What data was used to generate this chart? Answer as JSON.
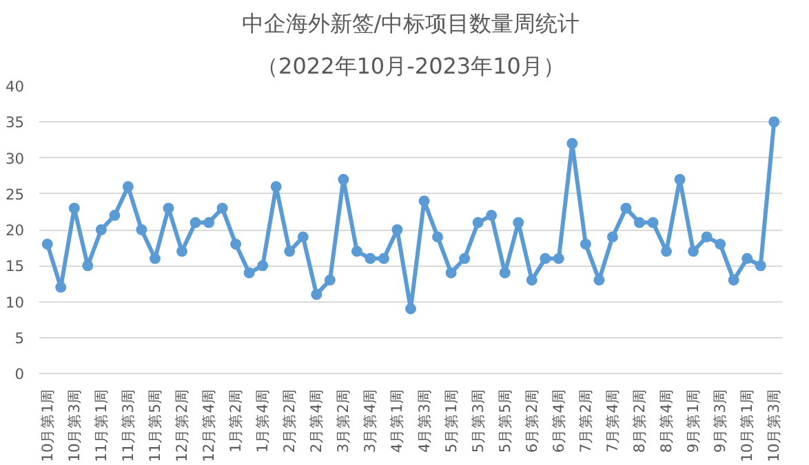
{
  "chart_data": {
    "type": "line",
    "title": "中企海外新签/中标项目数量周统计",
    "subtitle": "（2022年10月-2023年10月）",
    "categories": [
      "10月第1周",
      null,
      "10月第3周",
      null,
      "11月第1周",
      null,
      "11月第3周",
      null,
      "11月第5周",
      null,
      "12月第2周",
      null,
      "12月第4周",
      null,
      "1月第2周",
      null,
      "1月第4周",
      null,
      "2月第2周",
      null,
      "2月第4周",
      null,
      "3月第2周",
      null,
      "3月第4周",
      null,
      "4月第1周",
      null,
      "4月第3周",
      null,
      "5月第1周",
      null,
      "5月第3周",
      null,
      "5月第5周",
      null,
      "6月第2周",
      null,
      "6月第4周",
      null,
      "7月第2周",
      null,
      "7月第4周",
      null,
      "8月第2周",
      null,
      "8月第4周",
      null,
      "9月第1周",
      null,
      "9月第3周",
      null,
      "10月第1周",
      null,
      "10月第3周"
    ],
    "series": [
      {
        "color": "#5b9bd5",
        "values": [
          18,
          12,
          23,
          15,
          20,
          22,
          26,
          20,
          16,
          23,
          17,
          21,
          21,
          23,
          18,
          14,
          15,
          26,
          17,
          19,
          11,
          13,
          27,
          17,
          16,
          16,
          20,
          9,
          24,
          19,
          14,
          16,
          21,
          22,
          14,
          21,
          13,
          16,
          16,
          32,
          18,
          13,
          19,
          23,
          21,
          21,
          17,
          27,
          17,
          19,
          18,
          13,
          16,
          15,
          35
        ]
      }
    ],
    "ylim": [
      0,
      40
    ],
    "yticks": [
      0,
      5,
      10,
      15,
      20,
      25,
      30,
      35,
      40
    ],
    "grid": "y",
    "marker": "circle",
    "line_style": "solid"
  }
}
